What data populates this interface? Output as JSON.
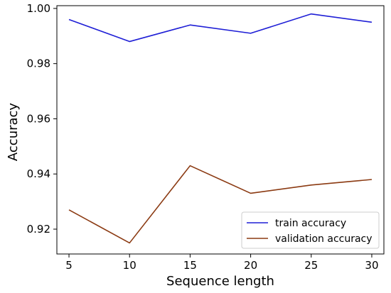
{
  "chart_data": {
    "type": "line",
    "title": "",
    "xlabel": "Sequence length",
    "ylabel": "Accuracy",
    "x": [
      5,
      10,
      15,
      20,
      25,
      30
    ],
    "xticks": [
      "5",
      "10",
      "15",
      "20",
      "25",
      "30"
    ],
    "yticks": [
      "0.92",
      "0.94",
      "0.96",
      "0.98",
      "1.00"
    ],
    "xlim": [
      4,
      31
    ],
    "ylim": [
      0.911,
      1.001
    ],
    "grid": false,
    "legend_position": "lower-right",
    "series": [
      {
        "name": "train accuracy",
        "color": "#1f1fd6",
        "values": [
          0.996,
          0.988,
          0.994,
          0.991,
          0.998,
          0.995
        ]
      },
      {
        "name": "validation accuracy",
        "color": "#8b3a12",
        "values": [
          0.927,
          0.915,
          0.943,
          0.933,
          0.936,
          0.938
        ]
      }
    ]
  }
}
